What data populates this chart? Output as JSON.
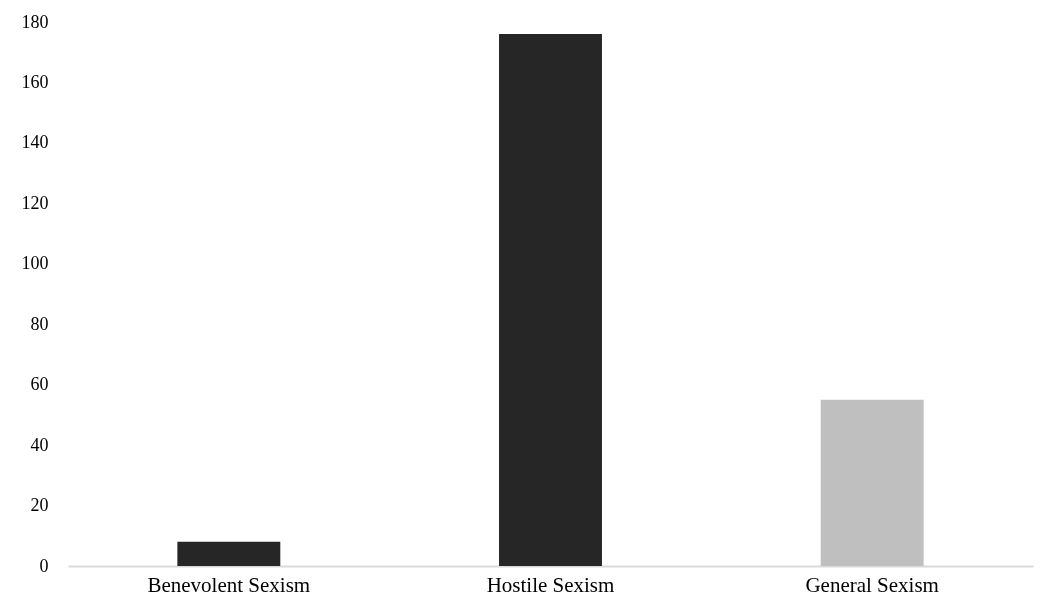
{
  "chart_data": {
    "type": "bar",
    "categories": [
      "Benevolent Sexism",
      "Hostile Sexism",
      "General Sexism"
    ],
    "values": [
      8,
      176,
      55
    ],
    "colors": [
      "#262626",
      "#262626",
      "#bfbfbf"
    ],
    "ylim": [
      0,
      180
    ],
    "yticks": [
      0,
      20,
      40,
      60,
      80,
      100,
      120,
      140,
      160,
      180
    ],
    "grid": false
  }
}
